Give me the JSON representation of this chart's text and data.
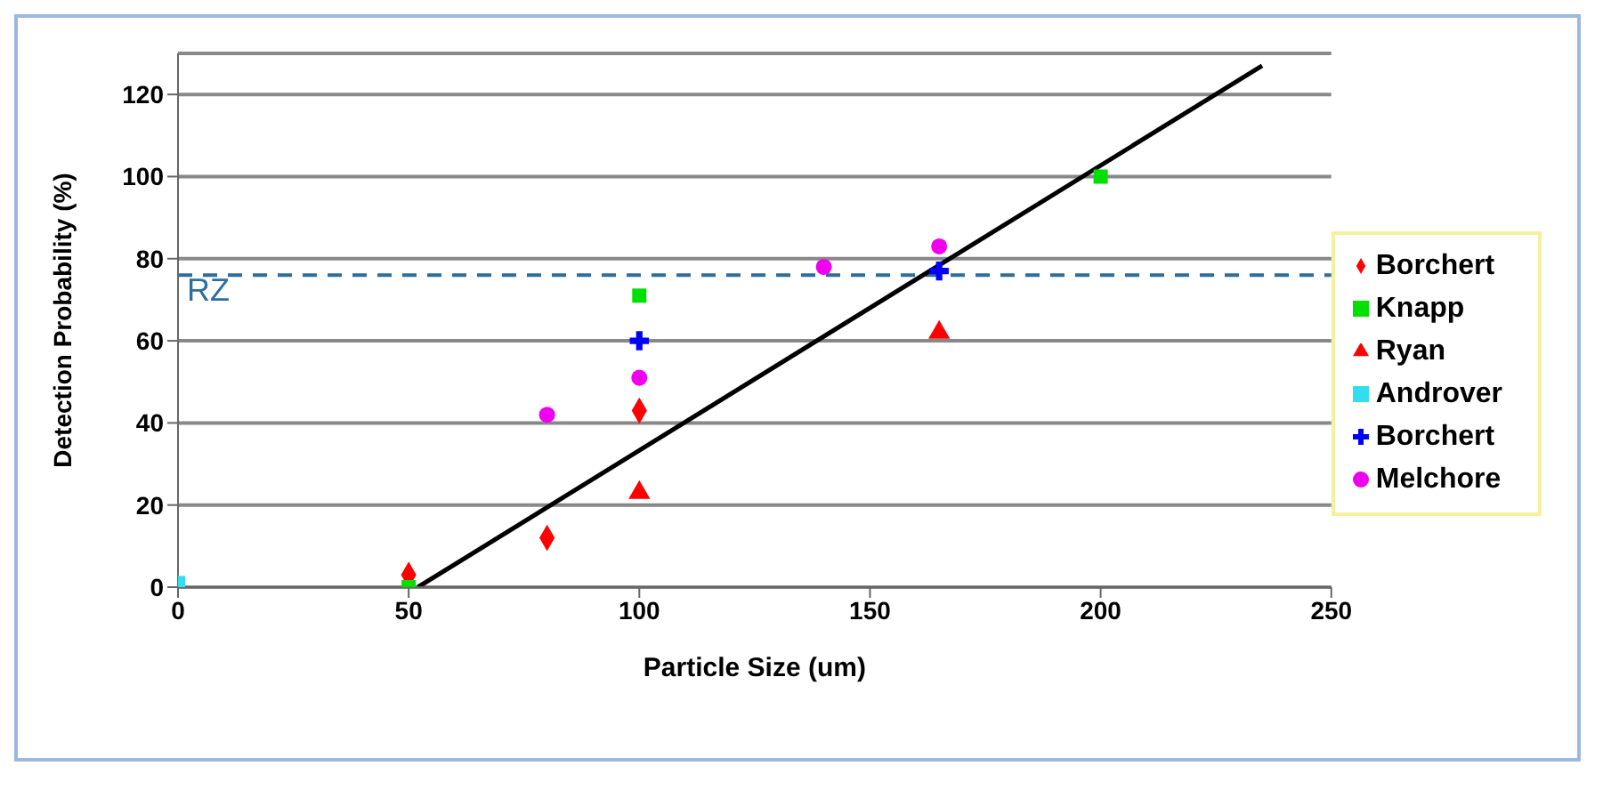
{
  "chart_data": {
    "type": "scatter",
    "xlabel": "Particle Size (um)",
    "ylabel": "Detection Probability (%)",
    "xlim": [
      0,
      250
    ],
    "xticks": [
      0,
      50,
      100,
      150,
      200,
      250
    ],
    "ylim": [
      0,
      130
    ],
    "yticks": [
      0,
      20,
      40,
      60,
      80,
      100,
      120
    ],
    "grid": "y",
    "legend": "right",
    "series": [
      {
        "name": "Borchert",
        "color": "#ff0000",
        "marker": "diamond",
        "x": [
          50,
          80,
          100
        ],
        "values": [
          3,
          12,
          43
        ]
      },
      {
        "name": "Knapp",
        "color": "#00e000",
        "marker": "square",
        "x": [
          50,
          100,
          200
        ],
        "values": [
          0,
          71,
          100
        ]
      },
      {
        "name": "Ryan",
        "color": "#ff0000",
        "marker": "triangle",
        "x": [
          100,
          165
        ],
        "values": [
          23,
          62
        ]
      },
      {
        "name": "Androver",
        "color": "#33ddee",
        "marker": "square",
        "x": [
          0
        ],
        "values": [
          1
        ]
      },
      {
        "name": "Borchert",
        "color": "#0000ff",
        "marker": "cross",
        "x": [
          100,
          165
        ],
        "values": [
          60,
          77
        ]
      },
      {
        "name": "Melchore",
        "color": "#ee00ee",
        "marker": "circle",
        "x": [
          80,
          100,
          140,
          165
        ],
        "values": [
          42,
          51,
          78,
          83
        ]
      },
      {
        "type": "line",
        "color": "#000000",
        "marker": "none",
        "x": [
          52,
          235
        ],
        "values": [
          0,
          127
        ]
      }
    ],
    "ref_lines": [
      {
        "axis": "y",
        "value": 76,
        "label": "RZ",
        "color": "#2e6e9e",
        "line_style": "dashed"
      }
    ]
  }
}
